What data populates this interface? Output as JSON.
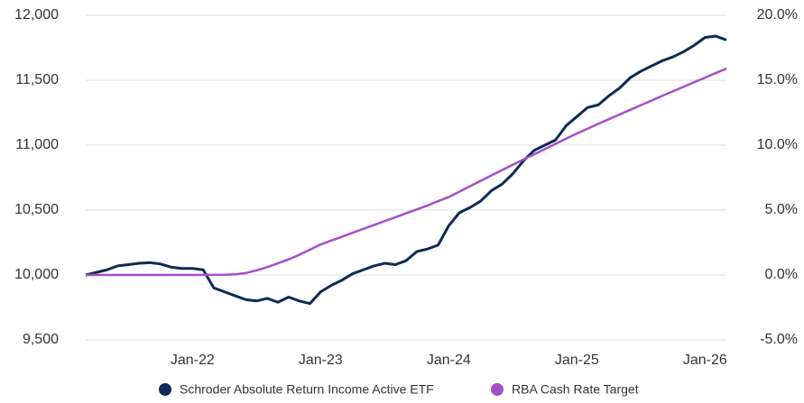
{
  "chart_data": {
    "type": "line",
    "x": [
      "Mar-21",
      "Apr-21",
      "May-21",
      "Jun-21",
      "Jul-21",
      "Aug-21",
      "Sep-21",
      "Oct-21",
      "Nov-21",
      "Dec-21",
      "Jan-22",
      "Feb-22",
      "Mar-22",
      "Apr-22",
      "May-22",
      "Jun-22",
      "Jul-22",
      "Aug-22",
      "Sep-22",
      "Oct-22",
      "Nov-22",
      "Dec-22",
      "Jan-23",
      "Feb-23",
      "Mar-23",
      "Apr-23",
      "May-23",
      "Jun-23",
      "Jul-23",
      "Aug-23",
      "Sep-23",
      "Oct-23",
      "Nov-23",
      "Dec-23",
      "Jan-24",
      "Feb-24",
      "Mar-24",
      "Apr-24",
      "May-24",
      "Jun-24",
      "Jul-24",
      "Aug-24",
      "Sep-24",
      "Oct-24",
      "Nov-24",
      "Dec-24",
      "Jan-25",
      "Feb-25",
      "Mar-25",
      "Apr-25",
      "May-25",
      "Jun-25",
      "Jul-25",
      "Aug-25",
      "Sep-25",
      "Oct-25",
      "Nov-25",
      "Dec-25",
      "Jan-26",
      "Feb-26",
      "Mar-26"
    ],
    "xticks": [
      "Jan-22",
      "Jan-23",
      "Jan-24",
      "Jan-25",
      "Jan-26"
    ],
    "series": [
      {
        "name": "Schroder Absolute Return Income Active ETF",
        "color": "#0d2b55",
        "values": [
          10000,
          10020,
          10040,
          10070,
          10080,
          10090,
          10095,
          10085,
          10060,
          10050,
          10050,
          10040,
          9900,
          9870,
          9840,
          9810,
          9800,
          9820,
          9790,
          9830,
          9800,
          9780,
          9870,
          9920,
          9960,
          10010,
          10040,
          10070,
          10090,
          10080,
          10110,
          10180,
          10200,
          10230,
          10380,
          10480,
          10520,
          10570,
          10650,
          10700,
          10780,
          10880,
          10960,
          11000,
          11040,
          11150,
          11220,
          11290,
          11310,
          11380,
          11440,
          11520,
          11570,
          11610,
          11650,
          11680,
          11720,
          11770,
          11830,
          11840,
          11810
        ]
      },
      {
        "name": "RBA Cash Rate Target",
        "color": "#a64dc9",
        "axis": "y2",
        "values": [
          0,
          0,
          0,
          0,
          0,
          0,
          0,
          0,
          0,
          0,
          0,
          0.01,
          0.01,
          0.02,
          0.05,
          0.15,
          0.35,
          0.6,
          0.9,
          1.2,
          1.55,
          1.95,
          2.35,
          2.65,
          2.95,
          3.25,
          3.55,
          3.85,
          4.15,
          4.45,
          4.75,
          5.05,
          5.35,
          5.68,
          6.0,
          6.42,
          6.84,
          7.26,
          7.67,
          8.08,
          8.49,
          8.9,
          9.3,
          9.7,
          10.1,
          10.5,
          10.9,
          11.27,
          11.64,
          12.0,
          12.36,
          12.72,
          13.08,
          13.44,
          13.8,
          14.15,
          14.5,
          14.85,
          15.2,
          15.55,
          15.9
        ]
      }
    ],
    "ylim": [
      9500,
      12000
    ],
    "yticks": [
      {
        "value": 9500,
        "label": "9,500"
      },
      {
        "value": 10000,
        "label": "10,000"
      },
      {
        "value": 10500,
        "label": "10,500"
      },
      {
        "value": 11000,
        "label": "11,000"
      },
      {
        "value": 11500,
        "label": "11,500"
      },
      {
        "value": 12000,
        "label": "12,000"
      }
    ],
    "y2lim": [
      -5,
      20
    ],
    "y2ticks": [
      {
        "value": -5,
        "label": "-5.0%"
      },
      {
        "value": 0,
        "label": "0.0%"
      },
      {
        "value": 5,
        "label": "5.0%"
      },
      {
        "value": 10,
        "label": "10.0%"
      },
      {
        "value": 15,
        "label": "15.0%"
      },
      {
        "value": 20,
        "label": "20.0%"
      }
    ],
    "grid": true,
    "legend": "bottom"
  }
}
